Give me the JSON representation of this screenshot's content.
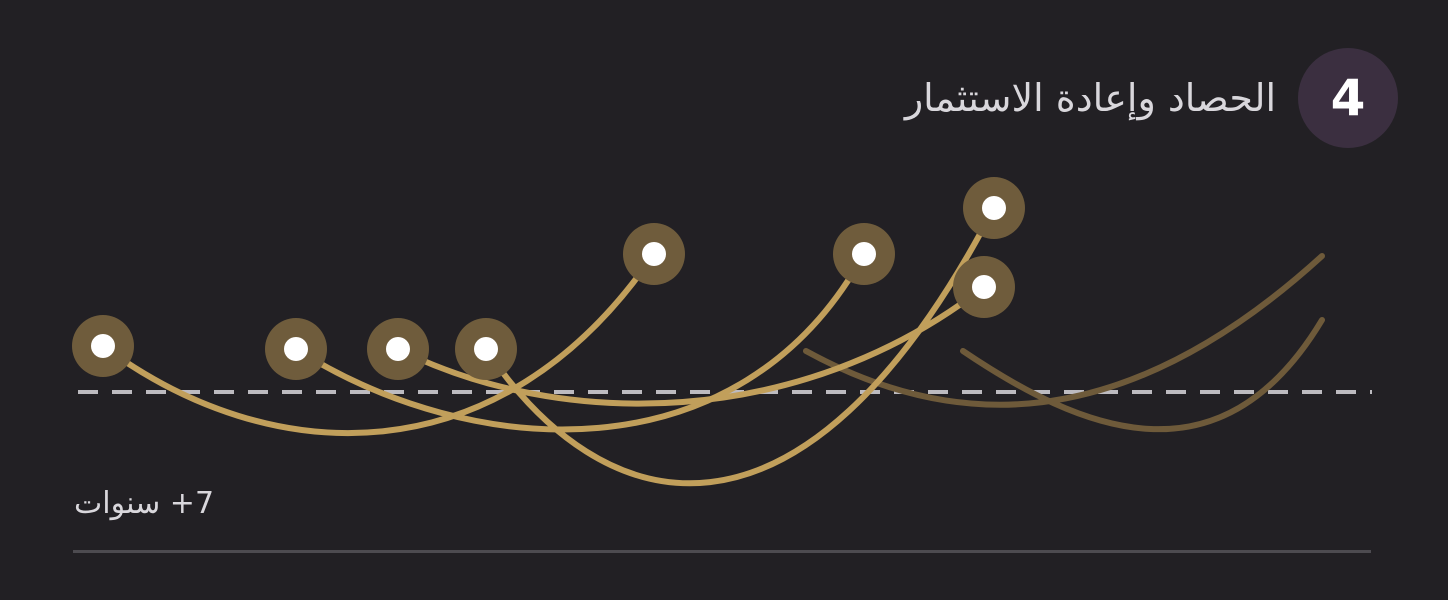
{
  "header": {
    "step_number": "4",
    "title": "الحصاد وإعادة الاستثمار"
  },
  "footer": {
    "duration_label": "7+ سنوات"
  },
  "colors": {
    "background": "#222024",
    "badge": "#3b2f40",
    "curve": "#c19f5b",
    "curve_faded": "#6e5a3a",
    "node_halo": "#6f5c3c",
    "node_dot": "#ffffff",
    "baseline": "#bdbbc0",
    "rule": "#4d4b50"
  }
}
